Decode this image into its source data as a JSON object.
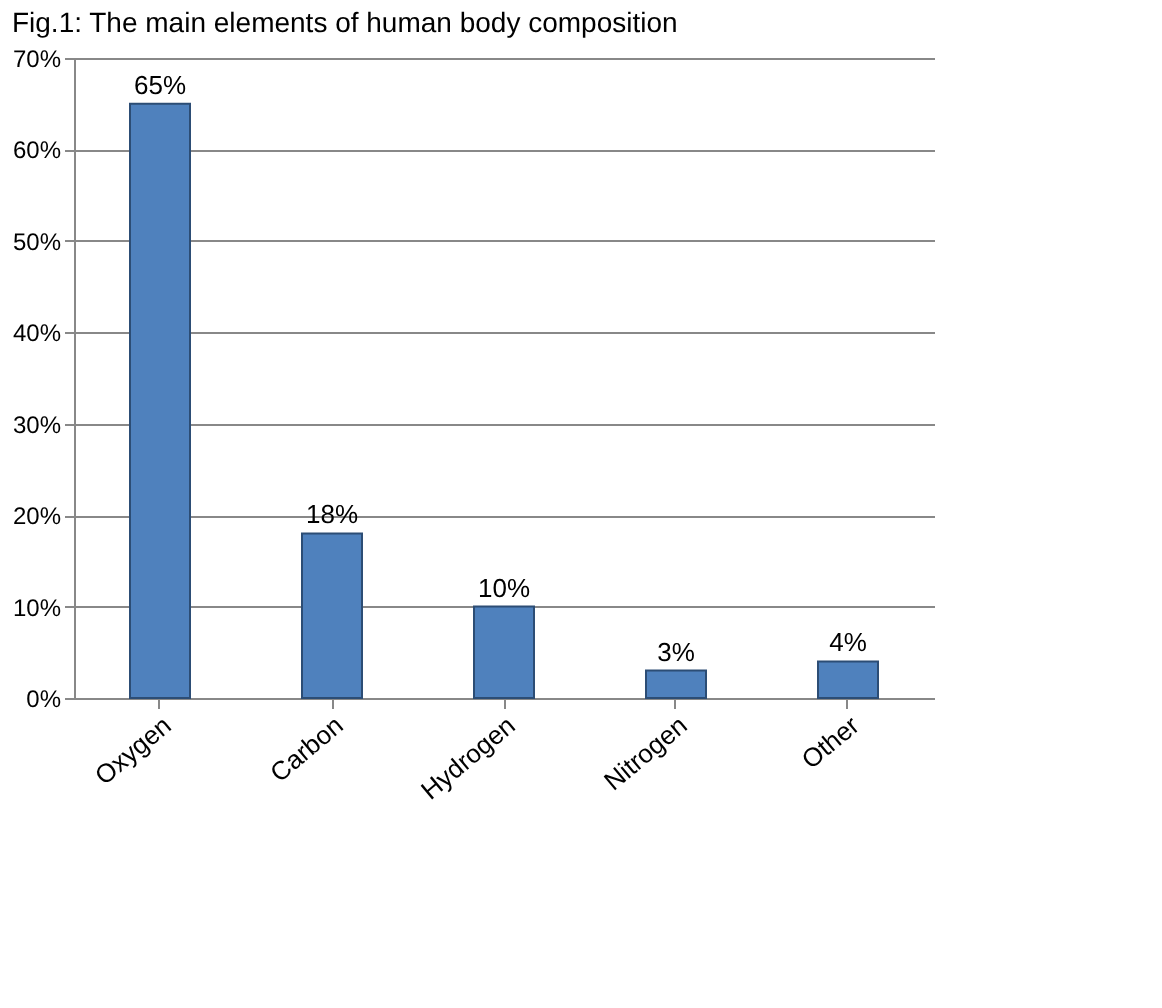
{
  "chart_data": {
    "type": "bar",
    "title": "Fig.1: The main elements of human body composition",
    "categories": [
      "Oxygen",
      "Carbon",
      "Hydrogen",
      "Nitrogen",
      "Other"
    ],
    "values": [
      65,
      18,
      10,
      3,
      4
    ],
    "color": "#4f81bd",
    "value_labels": [
      "65%",
      "18%",
      "10%",
      "3%",
      "4%"
    ],
    "ylim": [
      0,
      70
    ],
    "yticks": [
      {
        "value": 0,
        "label": "0%"
      },
      {
        "value": 10,
        "label": "10%"
      },
      {
        "value": 20,
        "label": "20%"
      },
      {
        "value": 30,
        "label": "30%"
      },
      {
        "value": 40,
        "label": "40%"
      },
      {
        "value": 50,
        "label": "50%"
      },
      {
        "value": 60,
        "label": "60%"
      },
      {
        "value": 70,
        "label": "70%"
      }
    ],
    "grid": "y"
  }
}
